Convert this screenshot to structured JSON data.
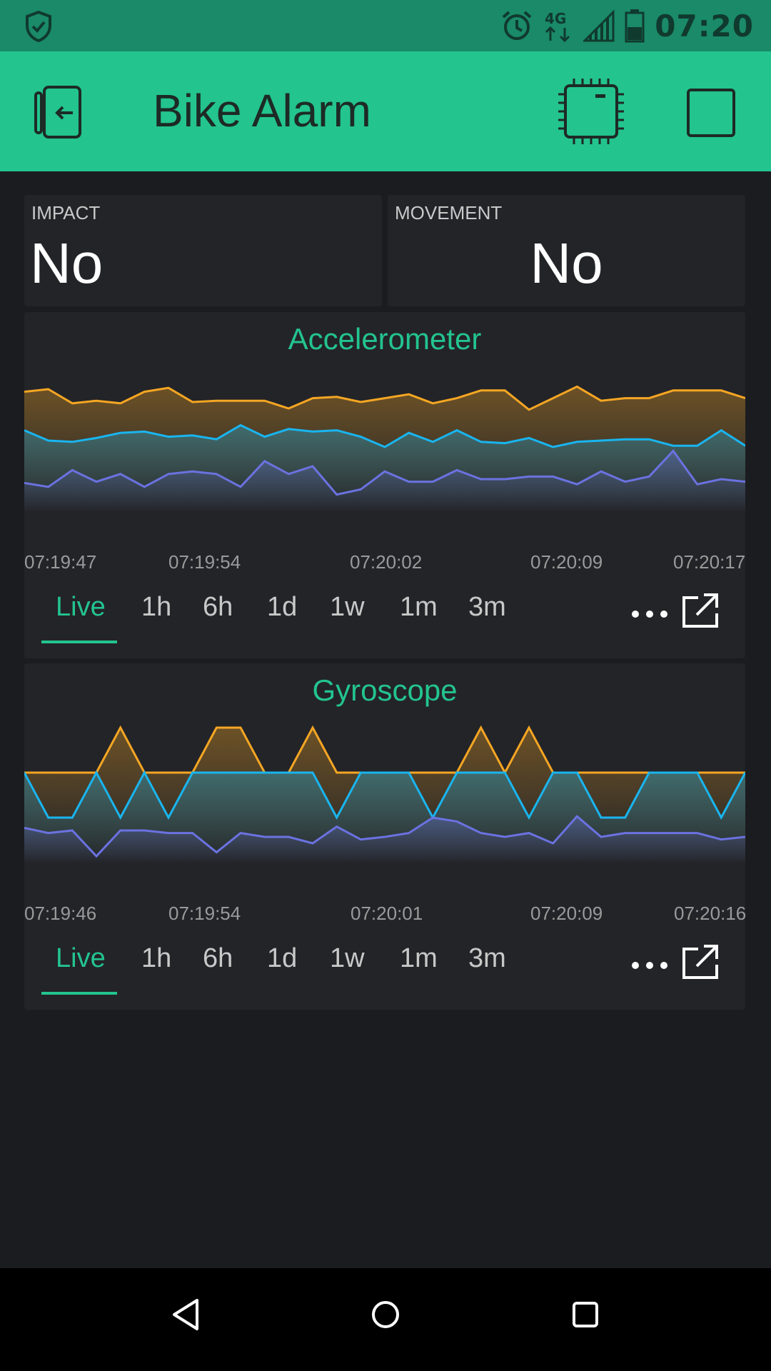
{
  "status_bar": {
    "time": "07:20",
    "network": "4G",
    "icons": [
      "shield-check-icon",
      "alarm-icon",
      "network-4g-icon",
      "signal-icon",
      "battery-icon"
    ]
  },
  "app_bar": {
    "title": "Bike Alarm",
    "icons": [
      "exit-device-icon",
      "chip-icon",
      "square-icon"
    ],
    "background": "#23c48e"
  },
  "widgets": {
    "impact": {
      "label": "IMPACT",
      "value": "No"
    },
    "movement": {
      "label": "MOVEMENT",
      "value": "No"
    }
  },
  "colors": {
    "accent": "#23c48e",
    "series_orange": "#f5a623",
    "series_cyan": "#19b5f0",
    "series_purple": "#6b72e0"
  },
  "chart_data": [
    {
      "type": "line",
      "title": "Accelerometer",
      "x_ticks": [
        "07:19:47",
        "07:19:54",
        "07:20:02",
        "07:20:09",
        "07:20:17"
      ],
      "time_ranges": [
        "Live",
        "1h",
        "6h",
        "1d",
        "1w",
        "1m",
        "3m"
      ],
      "active_range": "Live",
      "ylim": [
        0,
        100
      ],
      "series": [
        {
          "color": "#f5a623",
          "values": [
            88,
            90,
            79,
            81,
            79,
            88,
            91,
            80,
            81,
            81,
            81,
            75,
            83,
            84,
            80,
            83,
            86,
            79,
            83,
            89,
            89,
            74,
            83,
            92,
            81,
            83,
            83,
            89,
            89,
            89,
            83
          ]
        },
        {
          "color": "#19b5f0",
          "values": [
            58,
            50,
            49,
            52,
            56,
            57,
            53,
            54,
            51,
            62,
            53,
            59,
            57,
            58,
            53,
            45,
            56,
            49,
            58,
            49,
            48,
            52,
            45,
            49,
            50,
            51,
            51,
            46,
            46,
            58,
            46
          ]
        },
        {
          "color": "#6b72e0",
          "values": [
            17,
            14,
            27,
            18,
            24,
            14,
            24,
            26,
            24,
            14,
            34,
            24,
            30,
            8,
            12,
            26,
            18,
            18,
            27,
            20,
            20,
            22,
            22,
            16,
            26,
            18,
            22,
            42,
            16,
            20,
            18
          ]
        }
      ]
    },
    {
      "type": "line",
      "title": "Gyroscope",
      "x_ticks": [
        "07:19:46",
        "07:19:54",
        "07:20:01",
        "07:20:09",
        "07:20:16"
      ],
      "time_ranges": [
        "Live",
        "1h",
        "6h",
        "1d",
        "1w",
        "1m",
        "3m"
      ],
      "active_range": "Live",
      "ylim": [
        0,
        100
      ],
      "series": [
        {
          "color": "#f5a623",
          "values": [
            65,
            65,
            65,
            65,
            100,
            65,
            65,
            65,
            100,
            100,
            65,
            65,
            100,
            65,
            65,
            65,
            65,
            65,
            65,
            100,
            65,
            100,
            65,
            65,
            65,
            65,
            65,
            65,
            65,
            65,
            65
          ]
        },
        {
          "color": "#19b5f0",
          "values": [
            65,
            30,
            30,
            65,
            30,
            65,
            30,
            65,
            65,
            65,
            65,
            65,
            65,
            30,
            65,
            65,
            65,
            30,
            65,
            65,
            65,
            30,
            65,
            65,
            30,
            30,
            65,
            65,
            65,
            30,
            65
          ]
        },
        {
          "color": "#6b72e0",
          "values": [
            22,
            18,
            20,
            0,
            20,
            20,
            18,
            18,
            3,
            18,
            15,
            15,
            10,
            23,
            13,
            15,
            18,
            30,
            27,
            18,
            15,
            18,
            10,
            31,
            15,
            18,
            18,
            18,
            18,
            13,
            15
          ]
        }
      ]
    }
  ]
}
